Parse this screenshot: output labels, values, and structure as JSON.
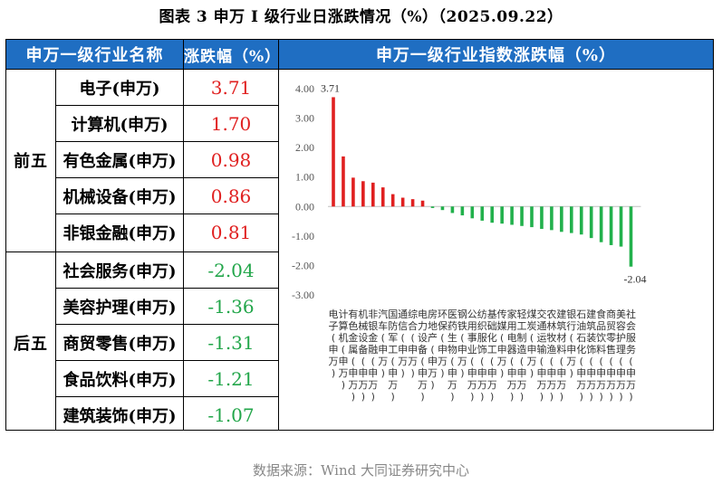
{
  "title": "图表 3   申万 I 级行业日涨跌情况（%）（2025.09.22）",
  "table": {
    "header_name": "申万一级行业名称",
    "header_value": "涨跌幅（%）",
    "header_chart": "申万一级行业指数涨跌幅（%）",
    "groups": [
      {
        "label": "前五",
        "rows": [
          {
            "name": "电子(申万)",
            "value": "3.71"
          },
          {
            "name": "计算机(申万)",
            "value": "1.70"
          },
          {
            "name": "有色金属(申万)",
            "value": "0.98"
          },
          {
            "name": "机械设备(申万)",
            "value": "0.86"
          },
          {
            "name": "非银金融(申万)",
            "value": "0.81"
          }
        ]
      },
      {
        "label": "后五",
        "rows": [
          {
            "name": "社会服务(申万)",
            "value": "-2.04"
          },
          {
            "name": "美容护理(申万)",
            "value": "-1.36"
          },
          {
            "name": "商贸零售(申万)",
            "value": "-1.31"
          },
          {
            "name": "食品饮料(申万)",
            "value": "-1.21"
          },
          {
            "name": "建筑装饰(申万)",
            "value": "-1.07"
          }
        ]
      }
    ]
  },
  "chart_data": {
    "type": "bar",
    "categories": [
      "电子",
      "计算机",
      "有色金属",
      "机械设备",
      "非银金融",
      "汽车",
      "国防军工",
      "通信",
      "综合",
      "电力设备",
      "房地产",
      "环保",
      "医药生物",
      "钢铁",
      "公用事业",
      "纺织服饰",
      "基础化工",
      "传媒",
      "家用电器",
      "轻工制造",
      "煤炭",
      "交通运输",
      "农林牧渔",
      "建筑材料",
      "银行",
      "石油石化",
      "建筑装饰",
      "食品饮料",
      "商贸零售",
      "美容护理",
      "社会服务"
    ],
    "label_suffix": "(申万)",
    "values": [
      3.71,
      1.7,
      0.98,
      0.86,
      0.81,
      0.65,
      0.42,
      0.3,
      0.25,
      0.2,
      -0.05,
      -0.12,
      -0.22,
      -0.3,
      -0.4,
      -0.48,
      -0.55,
      -0.58,
      -0.62,
      -0.66,
      -0.7,
      -0.76,
      -0.8,
      -0.86,
      -0.9,
      -0.95,
      -1.07,
      -1.21,
      -1.31,
      -1.36,
      -2.04
    ],
    "ylim": [
      -3.0,
      4.0
    ],
    "yticks": [
      "4.00",
      "3.00",
      "2.00",
      "1.00",
      "0.00",
      "-1.00",
      "-2.00",
      "-3.00"
    ],
    "annotations": [
      "3.71",
      "-2.04"
    ],
    "colors": {
      "positive": "#e02020",
      "negative": "#22b14c"
    }
  },
  "source": "数据来源：Wind  大同证券研究中心"
}
